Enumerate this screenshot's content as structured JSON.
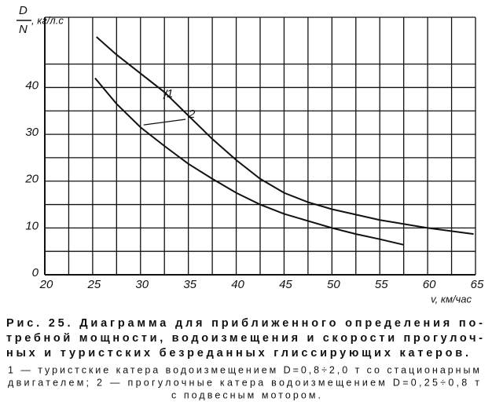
{
  "chart_data": {
    "type": "line",
    "y_label": {
      "numerator": "D",
      "denominator": "N",
      "unit": ", кг/л.с"
    },
    "x_label": "v, км/час",
    "xlim": [
      20,
      65
    ],
    "xticks": [
      20,
      25,
      30,
      35,
      40,
      45,
      50,
      55,
      60,
      65
    ],
    "ylim": [
      0,
      55
    ],
    "yticks": [
      0,
      10,
      20,
      30,
      40
    ],
    "grid": true,
    "series": [
      {
        "name": "1",
        "color": "#111111",
        "x": [
          25.4,
          27.5,
          30,
          32.5,
          35,
          37.5,
          40,
          42.5,
          45,
          47.5,
          50,
          55,
          60,
          64.8
        ],
        "values": [
          50.8,
          47,
          43,
          39,
          34,
          29,
          24.5,
          20.5,
          17.5,
          15.5,
          14,
          11.7,
          10,
          8.7
        ]
      },
      {
        "name": "2",
        "color": "#111111",
        "x": [
          25.25,
          27.5,
          30,
          32.5,
          35,
          37.5,
          40,
          42.5,
          45,
          47.5,
          50,
          52.5,
          55,
          57.5
        ],
        "values": [
          42,
          36.5,
          31.5,
          27.5,
          23.7,
          20.5,
          17.5,
          15,
          13,
          11.5,
          10,
          8.7,
          7.6,
          6.4
        ]
      }
    ],
    "caption": {
      "title_lines": [
        "Рис. 25. Диаграмма для приближенного определения по-",
        "требной мощности, водоизмещения и скорости прогулоч-",
        "ных и туристских безреданных глиссирующих катеров."
      ],
      "note_lines": [
        "1 — туристские катера водоизмещением D=0,8÷2,0 т со стационарным",
        "двигателем; 2 — прогулочные катера водоизмещением D=0,25÷0,8 т",
        "с подвесным мотором."
      ]
    }
  }
}
